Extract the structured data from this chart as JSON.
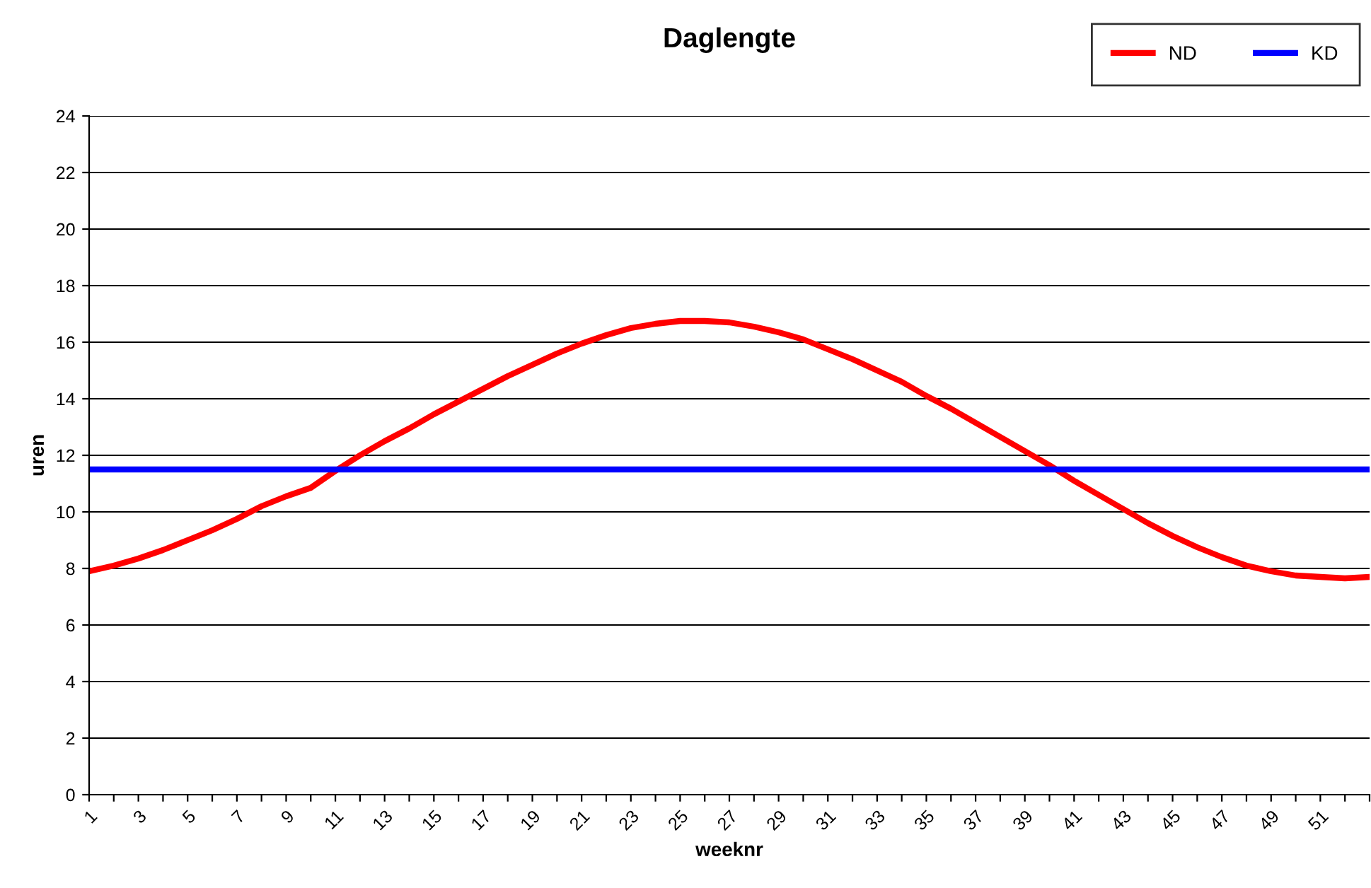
{
  "chart_data": {
    "type": "line",
    "title": "Daglengte",
    "xlabel": "weeknr",
    "ylabel": "uren",
    "categories": [
      "1",
      null,
      "3",
      null,
      "5",
      null,
      "7",
      null,
      "9",
      null,
      "11",
      null,
      "13",
      null,
      "15",
      null,
      "17",
      null,
      "19",
      null,
      "21",
      null,
      "23",
      null,
      "25",
      null,
      "27",
      null,
      "29",
      null,
      "31",
      null,
      "33",
      null,
      "35",
      null,
      "37",
      null,
      "39",
      null,
      "41",
      null,
      "43",
      null,
      "45",
      null,
      "47",
      null,
      "49",
      null,
      "51",
      null,
      null
    ],
    "series": [
      {
        "name": "ND",
        "color": "#ff0000",
        "values": [
          7.9,
          8.1,
          8.35,
          8.65,
          9.0,
          9.35,
          9.75,
          10.2,
          10.55,
          10.85,
          11.45,
          12.0,
          12.5,
          12.95,
          13.45,
          13.9,
          14.35,
          14.8,
          15.2,
          15.6,
          15.95,
          16.25,
          16.5,
          16.65,
          16.75,
          16.75,
          16.7,
          16.55,
          16.35,
          16.1,
          15.75,
          15.4,
          15.0,
          14.6,
          14.1,
          13.65,
          13.15,
          12.65,
          12.15,
          11.65,
          11.1,
          10.6,
          10.1,
          9.6,
          9.15,
          8.75,
          8.4,
          8.1,
          7.9,
          7.75,
          7.7,
          7.65,
          7.7
        ]
      },
      {
        "name": "KD",
        "color": "#0000ff",
        "values": [
          11.5,
          11.5,
          11.5,
          11.5,
          11.5,
          11.5,
          11.5,
          11.5,
          11.5,
          11.5,
          11.5,
          11.5,
          11.5,
          11.5,
          11.5,
          11.5,
          11.5,
          11.5,
          11.5,
          11.5,
          11.5,
          11.5,
          11.5,
          11.5,
          11.5,
          11.5,
          11.5,
          11.5,
          11.5,
          11.5,
          11.5,
          11.5,
          11.5,
          11.5,
          11.5,
          11.5,
          11.5,
          11.5,
          11.5,
          11.5,
          11.5,
          11.5,
          11.5,
          11.5,
          11.5,
          11.5,
          11.5,
          11.5,
          11.5,
          11.5,
          11.5,
          11.5,
          11.5
        ]
      }
    ],
    "ylim": [
      0,
      24
    ],
    "yticks": [
      0,
      2,
      4,
      6,
      8,
      10,
      12,
      14,
      16,
      18,
      20,
      22,
      24
    ],
    "grid": "y",
    "legend": "top right",
    "marker": "none",
    "line_style": "solid"
  }
}
